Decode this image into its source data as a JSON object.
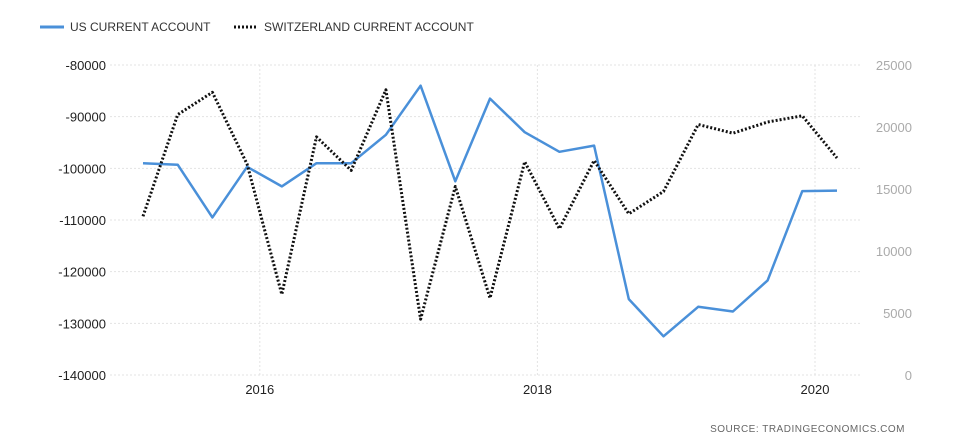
{
  "chart_data": {
    "type": "line",
    "title": "",
    "source": "SOURCE:  TRADINGECONOMICS.COM",
    "x_ticks": [
      "2016",
      "2018",
      "2020"
    ],
    "x": [
      "2015Q1",
      "2015Q2",
      "2015Q3",
      "2015Q4",
      "2016Q1",
      "2016Q2",
      "2016Q3",
      "2016Q4",
      "2017Q1",
      "2017Q2",
      "2017Q3",
      "2017Q4",
      "2018Q1",
      "2018Q2",
      "2018Q3",
      "2018Q4",
      "2019Q1",
      "2019Q2",
      "2019Q3",
      "2019Q4",
      "2020Q1"
    ],
    "left_axis": {
      "range": [
        -140000,
        -80000
      ],
      "ticks": [
        "-80000",
        "-90000",
        "-100000",
        "-110000",
        "-120000",
        "-130000",
        "-140000"
      ],
      "tick_values": [
        -80000,
        -90000,
        -100000,
        -110000,
        -120000,
        -130000,
        -140000
      ]
    },
    "right_axis": {
      "range": [
        0,
        25000
      ],
      "ticks": [
        "25000",
        "20000",
        "15000",
        "10000",
        "5000",
        "0"
      ],
      "tick_values": [
        25000,
        20000,
        15000,
        10000,
        5000,
        0
      ]
    },
    "series": [
      {
        "name": "US CURRENT ACCOUNT",
        "axis": "left",
        "color": "#4a90d9",
        "style": "solid",
        "values": [
          -99000,
          -99300,
          -109500,
          -99700,
          -103500,
          -99000,
          -99000,
          -93500,
          -84000,
          -102500,
          -86500,
          -93000,
          -96800,
          -95600,
          -125300,
          -132500,
          -126800,
          -127700,
          -121700,
          -104400,
          -104300
        ]
      },
      {
        "name": "SWITZERLAND CURRENT ACCOUNT",
        "axis": "right",
        "color": "#111111",
        "style": "dotted",
        "values": [
          12800,
          21000,
          22800,
          17000,
          6500,
          19200,
          16500,
          23000,
          4500,
          15200,
          6200,
          17200,
          11800,
          17300,
          13000,
          14800,
          20200,
          19500,
          20400,
          20900,
          17500
        ]
      }
    ],
    "grid": true,
    "legend_position": "top-left"
  }
}
